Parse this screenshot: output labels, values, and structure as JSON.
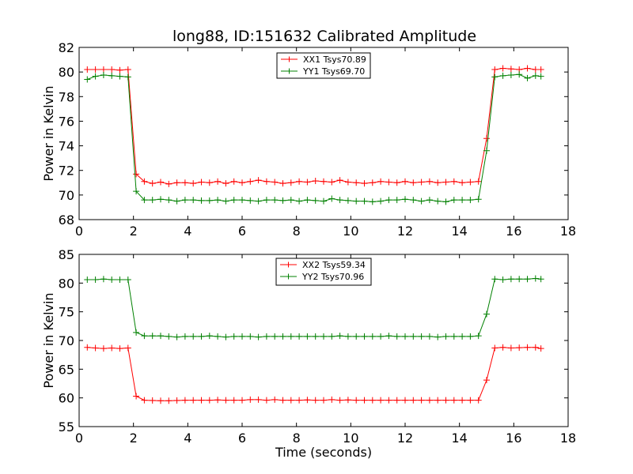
{
  "figure": {
    "title": "long88, ID:151632 Calibrated Amplitude"
  },
  "chart_data": [
    {
      "type": "line",
      "title": "long88, ID:151632 Calibrated Amplitude",
      "xlabel": "",
      "ylabel": "Power in Kelvin",
      "xlim": [
        0,
        18
      ],
      "ylim": [
        68,
        82
      ],
      "xticks": [
        0,
        2,
        4,
        6,
        8,
        10,
        12,
        14,
        16,
        18
      ],
      "yticks": [
        68,
        70,
        72,
        74,
        76,
        78,
        80,
        82
      ],
      "legend_position": "top-center",
      "x": [
        0.3,
        0.6,
        0.9,
        1.2,
        1.5,
        1.8,
        2.1,
        2.4,
        2.7,
        3.0,
        3.3,
        3.6,
        3.9,
        4.2,
        4.5,
        4.8,
        5.1,
        5.4,
        5.7,
        6.0,
        6.3,
        6.6,
        6.9,
        7.2,
        7.5,
        7.8,
        8.1,
        8.4,
        8.7,
        9.0,
        9.3,
        9.6,
        9.9,
        10.2,
        10.5,
        10.8,
        11.1,
        11.4,
        11.7,
        12.0,
        12.3,
        12.6,
        12.9,
        13.2,
        13.5,
        13.8,
        14.1,
        14.4,
        14.7,
        15.0,
        15.3,
        15.6,
        15.9,
        16.2,
        16.5,
        16.8,
        17.0
      ],
      "series": [
        {
          "name": "XX1 Tsys70.89",
          "color": "#ff0000",
          "values": [
            80.2,
            80.2,
            80.2,
            80.2,
            80.15,
            80.2,
            71.7,
            71.1,
            70.95,
            71.05,
            70.9,
            71.0,
            71.0,
            70.95,
            71.05,
            71.0,
            71.1,
            70.95,
            71.1,
            71.0,
            71.1,
            71.2,
            71.1,
            71.05,
            70.95,
            71.0,
            71.1,
            71.05,
            71.15,
            71.1,
            71.05,
            71.2,
            71.05,
            71.0,
            70.95,
            71.0,
            71.1,
            71.05,
            71.0,
            71.1,
            71.0,
            71.05,
            71.1,
            71.0,
            71.05,
            71.1,
            71.0,
            71.05,
            71.1,
            74.6,
            80.2,
            80.3,
            80.25,
            80.2,
            80.3,
            80.2,
            80.2
          ]
        },
        {
          "name": "YY1 Tsys69.70",
          "color": "#008000",
          "values": [
            79.4,
            79.65,
            79.75,
            79.7,
            79.65,
            79.6,
            70.3,
            69.6,
            69.6,
            69.65,
            69.6,
            69.5,
            69.6,
            69.6,
            69.55,
            69.55,
            69.6,
            69.5,
            69.6,
            69.6,
            69.55,
            69.5,
            69.6,
            69.6,
            69.55,
            69.6,
            69.5,
            69.6,
            69.55,
            69.5,
            69.7,
            69.6,
            69.55,
            69.5,
            69.5,
            69.45,
            69.5,
            69.6,
            69.6,
            69.65,
            69.6,
            69.5,
            69.6,
            69.5,
            69.45,
            69.6,
            69.6,
            69.6,
            69.65,
            73.6,
            79.6,
            79.7,
            79.75,
            79.8,
            79.5,
            79.7,
            79.65
          ]
        }
      ]
    },
    {
      "type": "line",
      "title": "",
      "xlabel": "Time (seconds)",
      "ylabel": "Power in Kelvin",
      "xlim": [
        0,
        18
      ],
      "ylim": [
        55,
        85
      ],
      "xticks": [
        0,
        2,
        4,
        6,
        8,
        10,
        12,
        14,
        16,
        18
      ],
      "yticks": [
        55,
        60,
        65,
        70,
        75,
        80,
        85
      ],
      "legend_position": "top-center",
      "x": [
        0.3,
        0.6,
        0.9,
        1.2,
        1.5,
        1.8,
        2.1,
        2.4,
        2.7,
        3.0,
        3.3,
        3.6,
        3.9,
        4.2,
        4.5,
        4.8,
        5.1,
        5.4,
        5.7,
        6.0,
        6.3,
        6.6,
        6.9,
        7.2,
        7.5,
        7.8,
        8.1,
        8.4,
        8.7,
        9.0,
        9.3,
        9.6,
        9.9,
        10.2,
        10.5,
        10.8,
        11.1,
        11.4,
        11.7,
        12.0,
        12.3,
        12.6,
        12.9,
        13.2,
        13.5,
        13.8,
        14.1,
        14.4,
        14.7,
        15.0,
        15.3,
        15.6,
        15.9,
        16.2,
        16.5,
        16.8,
        17.0
      ],
      "series": [
        {
          "name": "XX2 Tsys59.34",
          "color": "#ff0000",
          "values": [
            68.8,
            68.7,
            68.6,
            68.7,
            68.6,
            68.7,
            60.3,
            59.6,
            59.55,
            59.5,
            59.5,
            59.55,
            59.6,
            59.6,
            59.6,
            59.6,
            59.65,
            59.6,
            59.6,
            59.6,
            59.7,
            59.7,
            59.6,
            59.7,
            59.6,
            59.6,
            59.6,
            59.65,
            59.6,
            59.6,
            59.7,
            59.6,
            59.65,
            59.6,
            59.6,
            59.6,
            59.6,
            59.6,
            59.6,
            59.6,
            59.6,
            59.6,
            59.6,
            59.6,
            59.6,
            59.6,
            59.6,
            59.6,
            59.6,
            63.1,
            68.7,
            68.8,
            68.7,
            68.75,
            68.8,
            68.8,
            68.6
          ]
        },
        {
          "name": "YY2 Tsys70.96",
          "color": "#008000",
          "values": [
            80.6,
            80.6,
            80.7,
            80.6,
            80.6,
            80.6,
            71.4,
            70.8,
            70.8,
            70.8,
            70.7,
            70.6,
            70.7,
            70.7,
            70.7,
            70.8,
            70.7,
            70.6,
            70.7,
            70.7,
            70.7,
            70.6,
            70.7,
            70.7,
            70.7,
            70.7,
            70.7,
            70.7,
            70.7,
            70.7,
            70.7,
            70.8,
            70.7,
            70.7,
            70.7,
            70.7,
            70.7,
            70.8,
            70.7,
            70.7,
            70.7,
            70.7,
            70.7,
            70.6,
            70.7,
            70.7,
            70.7,
            70.7,
            70.8,
            74.6,
            80.7,
            80.6,
            80.7,
            80.7,
            80.7,
            80.8,
            80.7
          ]
        }
      ]
    }
  ]
}
